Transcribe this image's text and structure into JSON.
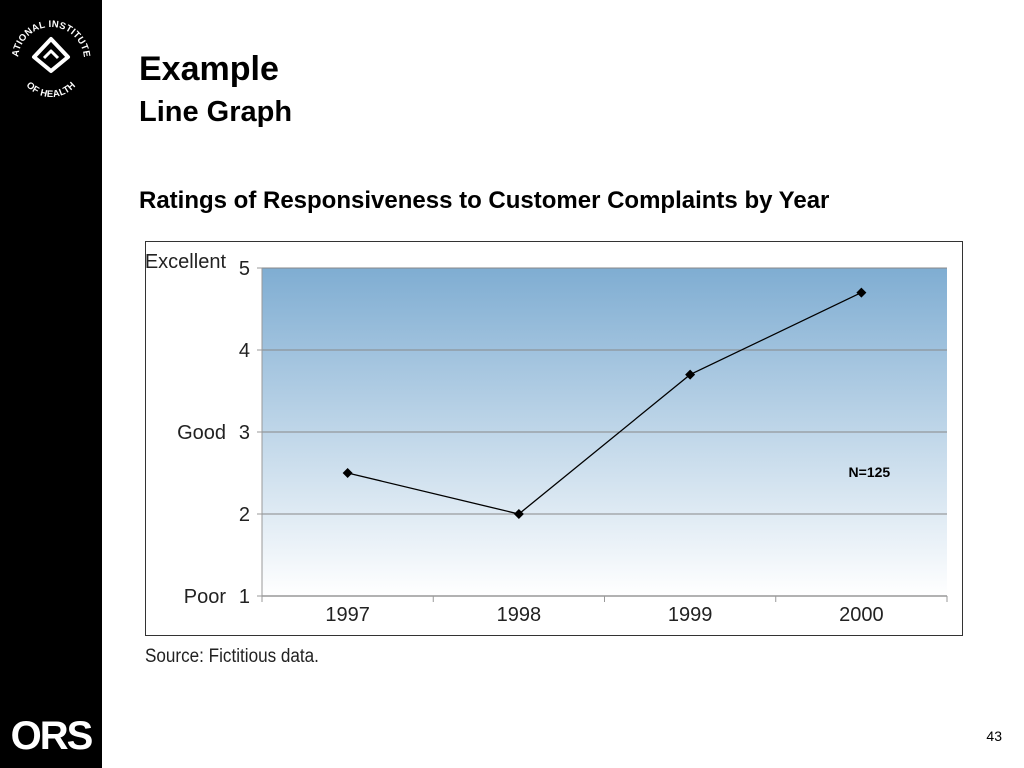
{
  "slide": {
    "title": "Example",
    "subtitle": "Line Graph",
    "chart_heading": "Ratings of Responsiveness to Customer Complaints by Year",
    "source": "Source:  Fictitious data.",
    "page_number": "43"
  },
  "sidebar": {
    "seal_text_top": "NATIONAL INSTITUTES",
    "seal_text_bottom": "OF HEALTH",
    "logo_text": "ORS",
    "background": "#000000"
  },
  "chart_data": {
    "type": "line",
    "title": "Ratings of Responsiveness to Customer Complaints by Year",
    "categories": [
      "1997",
      "1998",
      "1999",
      "2000"
    ],
    "series": [
      {
        "values": [
          2.5,
          2.0,
          3.7,
          4.7
        ]
      }
    ],
    "yticks": [
      1,
      2,
      3,
      4,
      5
    ],
    "ylim": [
      1,
      5
    ],
    "y_category_labels": [
      {
        "value": 5,
        "label": "Excellent"
      },
      {
        "value": 3,
        "label": "Good"
      },
      {
        "value": 1,
        "label": "Poor"
      }
    ],
    "annotation": "N=125",
    "grid": true,
    "marker": "diamond",
    "colors": {
      "plot_top": "#7fadd2",
      "plot_bottom": "#ffffff",
      "line": "#000000",
      "grid": "#888888"
    }
  }
}
